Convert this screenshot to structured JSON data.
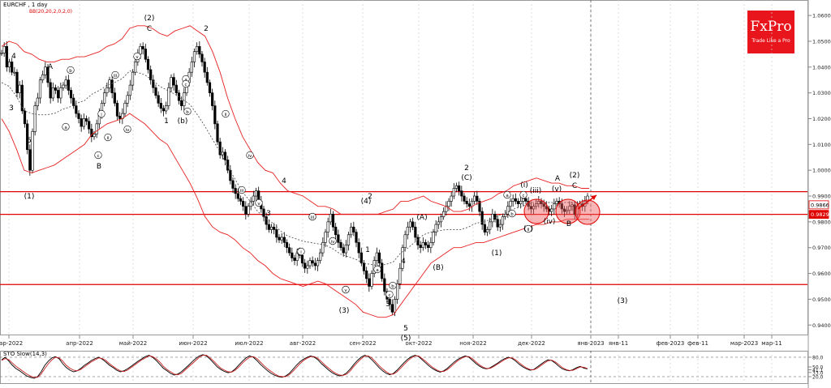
{
  "header": {
    "symbol_label": "EURCHF , 1 day",
    "bb_label": "BB(20,20,2,0,2,0)"
  },
  "logo": {
    "name": "FxPro",
    "tagline": "Trade Like a Pro"
  },
  "sto_label": "STO Slow(14,3)",
  "colors": {
    "candle": "#000000",
    "bollinger": "#e82020",
    "midline": "#555555",
    "levels": "#e00000",
    "circle_fill": "rgba(240,90,90,0.45)"
  },
  "chart_data": [
    {
      "type": "candlestick",
      "y_ticks": [
        "1.0600",
        "1.0500",
        "1.0400",
        "1.0300",
        "1.0200",
        "1.0100",
        "1.0000",
        "0.9900",
        "0.9800",
        "0.9700",
        "0.9600",
        "0.9500",
        "0.9400"
      ],
      "ylim": [
        0.936,
        1.066
      ],
      "x_ticks": [
        "мар-2022",
        "апр-2022",
        "май-2022",
        "июн-2022",
        "июл-2022",
        "авг-2022",
        "сен-2022",
        "окт-2022",
        "ноя-2022",
        "дек-2022",
        "янв-2023",
        "янв-11",
        "фев-2023",
        "фев-11",
        "мар-2023",
        "мар-11"
      ],
      "price_flags": [
        {
          "label": "0.9866",
          "style": "outline"
        },
        {
          "label": "0.9829",
          "style": "filled"
        }
      ],
      "price_flag_values": [
        0.9866,
        0.9829
      ],
      "horizontal_levels": [
        0.9917,
        0.9829,
        0.9557
      ],
      "series_close": [
        1.0455,
        1.048,
        1.04,
        1.042,
        1.038,
        1.038,
        1.03,
        1.033,
        1.023,
        1.018,
        1.008,
        1.0,
        1.015,
        1.025,
        1.028,
        1.035,
        1.037,
        1.04,
        1.034,
        1.028,
        1.032,
        1.031,
        1.028,
        1.032,
        1.033,
        1.035,
        1.031,
        1.028,
        1.025,
        1.022,
        1.02,
        1.017,
        1.02,
        1.019,
        1.016,
        1.013,
        1.014,
        1.018,
        1.022,
        1.026,
        1.03,
        1.032,
        1.035,
        1.03,
        1.026,
        1.021,
        1.02,
        1.022,
        1.026,
        1.029,
        1.033,
        1.038,
        1.042,
        1.045,
        1.048,
        1.047,
        1.043,
        1.039,
        1.035,
        1.032,
        1.029,
        1.026,
        1.024,
        1.023,
        1.025,
        1.032,
        1.036,
        1.033,
        1.03,
        1.027,
        1.025,
        1.03,
        1.034,
        1.038,
        1.042,
        1.046,
        1.048,
        1.045,
        1.042,
        1.038,
        1.034,
        1.03,
        1.025,
        1.018,
        1.011,
        1.006,
        1.007,
        1.004,
        1.0,
        0.996,
        0.993,
        0.991,
        0.989,
        0.988,
        0.986,
        0.983,
        0.986,
        0.988,
        0.99,
        0.992,
        0.988,
        0.985,
        0.982,
        0.979,
        0.977,
        0.978,
        0.977,
        0.974,
        0.973,
        0.974,
        0.972,
        0.97,
        0.968,
        0.966,
        0.965,
        0.968,
        0.967,
        0.964,
        0.962,
        0.963,
        0.965,
        0.964,
        0.963,
        0.965,
        0.968,
        0.972,
        0.976,
        0.98,
        0.983,
        0.978,
        0.975,
        0.972,
        0.97,
        0.968,
        0.971,
        0.975,
        0.978,
        0.976,
        0.972,
        0.968,
        0.964,
        0.961,
        0.958,
        0.955,
        0.96,
        0.965,
        0.968,
        0.964,
        0.958,
        0.953,
        0.95,
        0.948,
        0.945,
        0.95,
        0.956,
        0.962,
        0.97,
        0.975,
        0.978,
        0.98,
        0.978,
        0.974,
        0.971,
        0.97,
        0.972,
        0.971,
        0.97,
        0.972,
        0.976,
        0.979,
        0.98,
        0.982,
        0.984,
        0.986,
        0.988,
        0.99,
        0.993,
        0.994,
        0.992,
        0.99,
        0.988,
        0.987,
        0.986,
        0.988,
        0.99,
        0.988,
        0.984,
        0.979,
        0.976,
        0.977,
        0.98,
        0.983,
        0.981,
        0.978,
        0.979,
        0.982,
        0.983,
        0.986,
        0.988,
        0.989,
        0.988,
        0.987,
        0.988,
        0.989,
        0.988,
        0.986,
        0.985,
        0.986,
        0.987,
        0.988,
        0.987,
        0.986,
        0.985,
        0.984,
        0.985,
        0.987,
        0.988,
        0.987,
        0.985,
        0.984,
        0.9845,
        0.986,
        0.9866,
        0.9829,
        0.986,
        0.987,
        0.986,
        0.988,
        0.99
      ],
      "bollinger_upper": [
        1.048,
        1.05,
        1.049,
        1.046,
        1.045,
        1.043,
        1.042,
        1.042,
        1.043,
        1.043,
        1.044,
        1.044,
        1.045,
        1.046,
        1.048,
        1.049,
        1.051,
        1.055,
        1.056,
        1.056,
        1.055,
        1.053,
        1.052,
        1.054,
        1.055,
        1.056,
        1.054,
        1.052,
        1.046,
        1.038,
        1.028,
        1.02,
        1.013,
        1.008,
        1.003,
        1.0,
        0.999,
        0.995,
        0.992,
        0.991,
        0.99,
        0.988,
        0.986,
        0.986,
        0.985,
        0.983,
        0.983,
        0.983,
        0.983,
        0.983,
        0.983,
        0.984,
        0.985,
        0.988,
        0.988,
        0.989,
        0.99,
        0.988,
        0.987,
        0.986,
        0.984,
        0.984,
        0.985,
        0.987,
        0.988,
        0.989,
        0.991,
        0.992,
        0.994,
        0.995,
        0.996,
        0.997,
        0.996,
        0.995,
        0.995,
        0.994,
        0.994,
        0.993,
        0.993
      ],
      "bollinger_lower": [
        1.02,
        1.015,
        1.008,
        1.0,
        0.999,
        1.0,
        1.001,
        1.002,
        1.004,
        1.006,
        1.008,
        1.01,
        1.014,
        1.016,
        1.018,
        1.019,
        1.02,
        1.022,
        1.02,
        1.018,
        1.015,
        1.012,
        1.01,
        1.005,
        1.0,
        0.995,
        0.989,
        0.982,
        0.978,
        0.976,
        0.975,
        0.973,
        0.97,
        0.968,
        0.965,
        0.963,
        0.96,
        0.958,
        0.957,
        0.956,
        0.955,
        0.956,
        0.957,
        0.956,
        0.954,
        0.952,
        0.95,
        0.948,
        0.945,
        0.944,
        0.943,
        0.943,
        0.944,
        0.948,
        0.952,
        0.956,
        0.96,
        0.964,
        0.966,
        0.968,
        0.97,
        0.97,
        0.971,
        0.972,
        0.972,
        0.973,
        0.974,
        0.975,
        0.976,
        0.977,
        0.978,
        0.979,
        0.979,
        0.98,
        0.98,
        0.981,
        0.981,
        0.981,
        0.981
      ],
      "wave_labels": [
        "4",
        "A",
        "3",
        "5",
        "(1)",
        "(2)",
        "C",
        "2",
        "b",
        "a",
        "c",
        "B",
        "i",
        "ii",
        "iii",
        "iv",
        "v",
        "1",
        "(b)",
        "ii",
        "iii",
        "iv",
        "v",
        "i",
        "iii",
        "iv",
        "v",
        "3",
        "4",
        "a",
        "b",
        "c",
        "1",
        "2",
        "3",
        "4",
        "5",
        "(3)",
        "(4)",
        "(5)",
        "(A)",
        "(B)",
        "(C)",
        "2",
        "a",
        "b",
        "c",
        "(i)",
        "(ii)",
        "(iii)",
        "(iv)",
        "(v)",
        "A",
        "(2)",
        "C",
        "B",
        "(3)",
        "a",
        "b",
        "c",
        "iii",
        "iv",
        "v",
        "i",
        "ii",
        "(1)"
      ]
    },
    {
      "type": "line",
      "title": "STO Slow(14,3)",
      "y_ticks": [
        "80.0",
        "50.0",
        "41.1",
        "33.0",
        "20.0"
      ],
      "ylim": [
        0,
        100
      ],
      "levels": [
        80,
        20
      ],
      "series": [
        {
          "values": [
            72,
            80,
            68,
            55,
            45,
            38,
            30,
            22,
            18,
            15,
            20,
            35,
            55,
            68,
            78,
            82,
            75,
            60,
            48,
            40,
            35,
            38,
            45,
            55,
            62,
            70,
            76,
            80,
            74,
            65,
            55,
            48,
            40,
            35,
            38,
            44,
            52,
            60,
            68,
            75,
            82,
            86,
            80,
            70,
            58,
            46,
            38,
            30,
            25,
            28,
            35,
            45,
            55,
            66,
            76,
            84,
            88,
            84,
            74,
            62,
            50,
            42,
            36,
            32,
            35,
            44,
            56,
            68,
            78,
            84,
            80,
            70,
            58,
            48,
            38,
            30,
            24,
            20,
            18,
            22,
            30,
            42,
            55,
            66,
            74,
            80,
            84,
            80,
            72,
            60,
            50,
            40,
            32,
            26,
            22,
            25,
            32,
            44,
            58,
            70,
            80,
            86,
            82,
            72,
            60,
            48,
            38,
            30,
            26,
            30,
            40,
            52,
            64,
            74,
            82,
            86,
            82,
            72,
            62,
            52,
            44,
            38,
            34,
            38,
            46,
            56,
            66,
            74,
            80,
            84,
            80,
            70,
            60,
            52,
            46,
            44,
            48,
            55,
            62,
            70,
            76,
            80,
            76,
            68,
            58,
            50,
            44,
            40,
            42,
            50,
            58,
            66,
            72,
            70,
            62,
            52,
            44,
            40,
            38,
            42,
            48,
            52,
            46,
            44
          ]
        },
        {
          "values": [
            70,
            76,
            72,
            62,
            52,
            44,
            36,
            28,
            22,
            18,
            18,
            28,
            45,
            60,
            72,
            80,
            78,
            68,
            55,
            46,
            40,
            38,
            42,
            50,
            58,
            66,
            72,
            78,
            76,
            70,
            60,
            52,
            44,
            38,
            36,
            40,
            48,
            56,
            64,
            72,
            78,
            84,
            82,
            75,
            65,
            52,
            42,
            35,
            28,
            26,
            30,
            40,
            50,
            60,
            70,
            80,
            86,
            86,
            78,
            68,
            56,
            46,
            40,
            35,
            34,
            40,
            50,
            62,
            72,
            80,
            82,
            76,
            65,
            54,
            44,
            36,
            28,
            22,
            20,
            20,
            26,
            36,
            48,
            60,
            70,
            77,
            82,
            82,
            76,
            66,
            55,
            46,
            37,
            30,
            25,
            24,
            28,
            38,
            52,
            64,
            75,
            83,
            84,
            78,
            66,
            54,
            44,
            35,
            28,
            28,
            35,
            46,
            58,
            69,
            78,
            84,
            84,
            76,
            67,
            57,
            48,
            41,
            36,
            36,
            42,
            51,
            61,
            70,
            77,
            82,
            82,
            75,
            65,
            56,
            49,
            45,
            46,
            52,
            59,
            66,
            73,
            78,
            78,
            72,
            63,
            54,
            47,
            42,
            41,
            46,
            54,
            62,
            69,
            71,
            66,
            57,
            48,
            42,
            39,
            40,
            45,
            50,
            49,
            45
          ]
        }
      ]
    }
  ]
}
